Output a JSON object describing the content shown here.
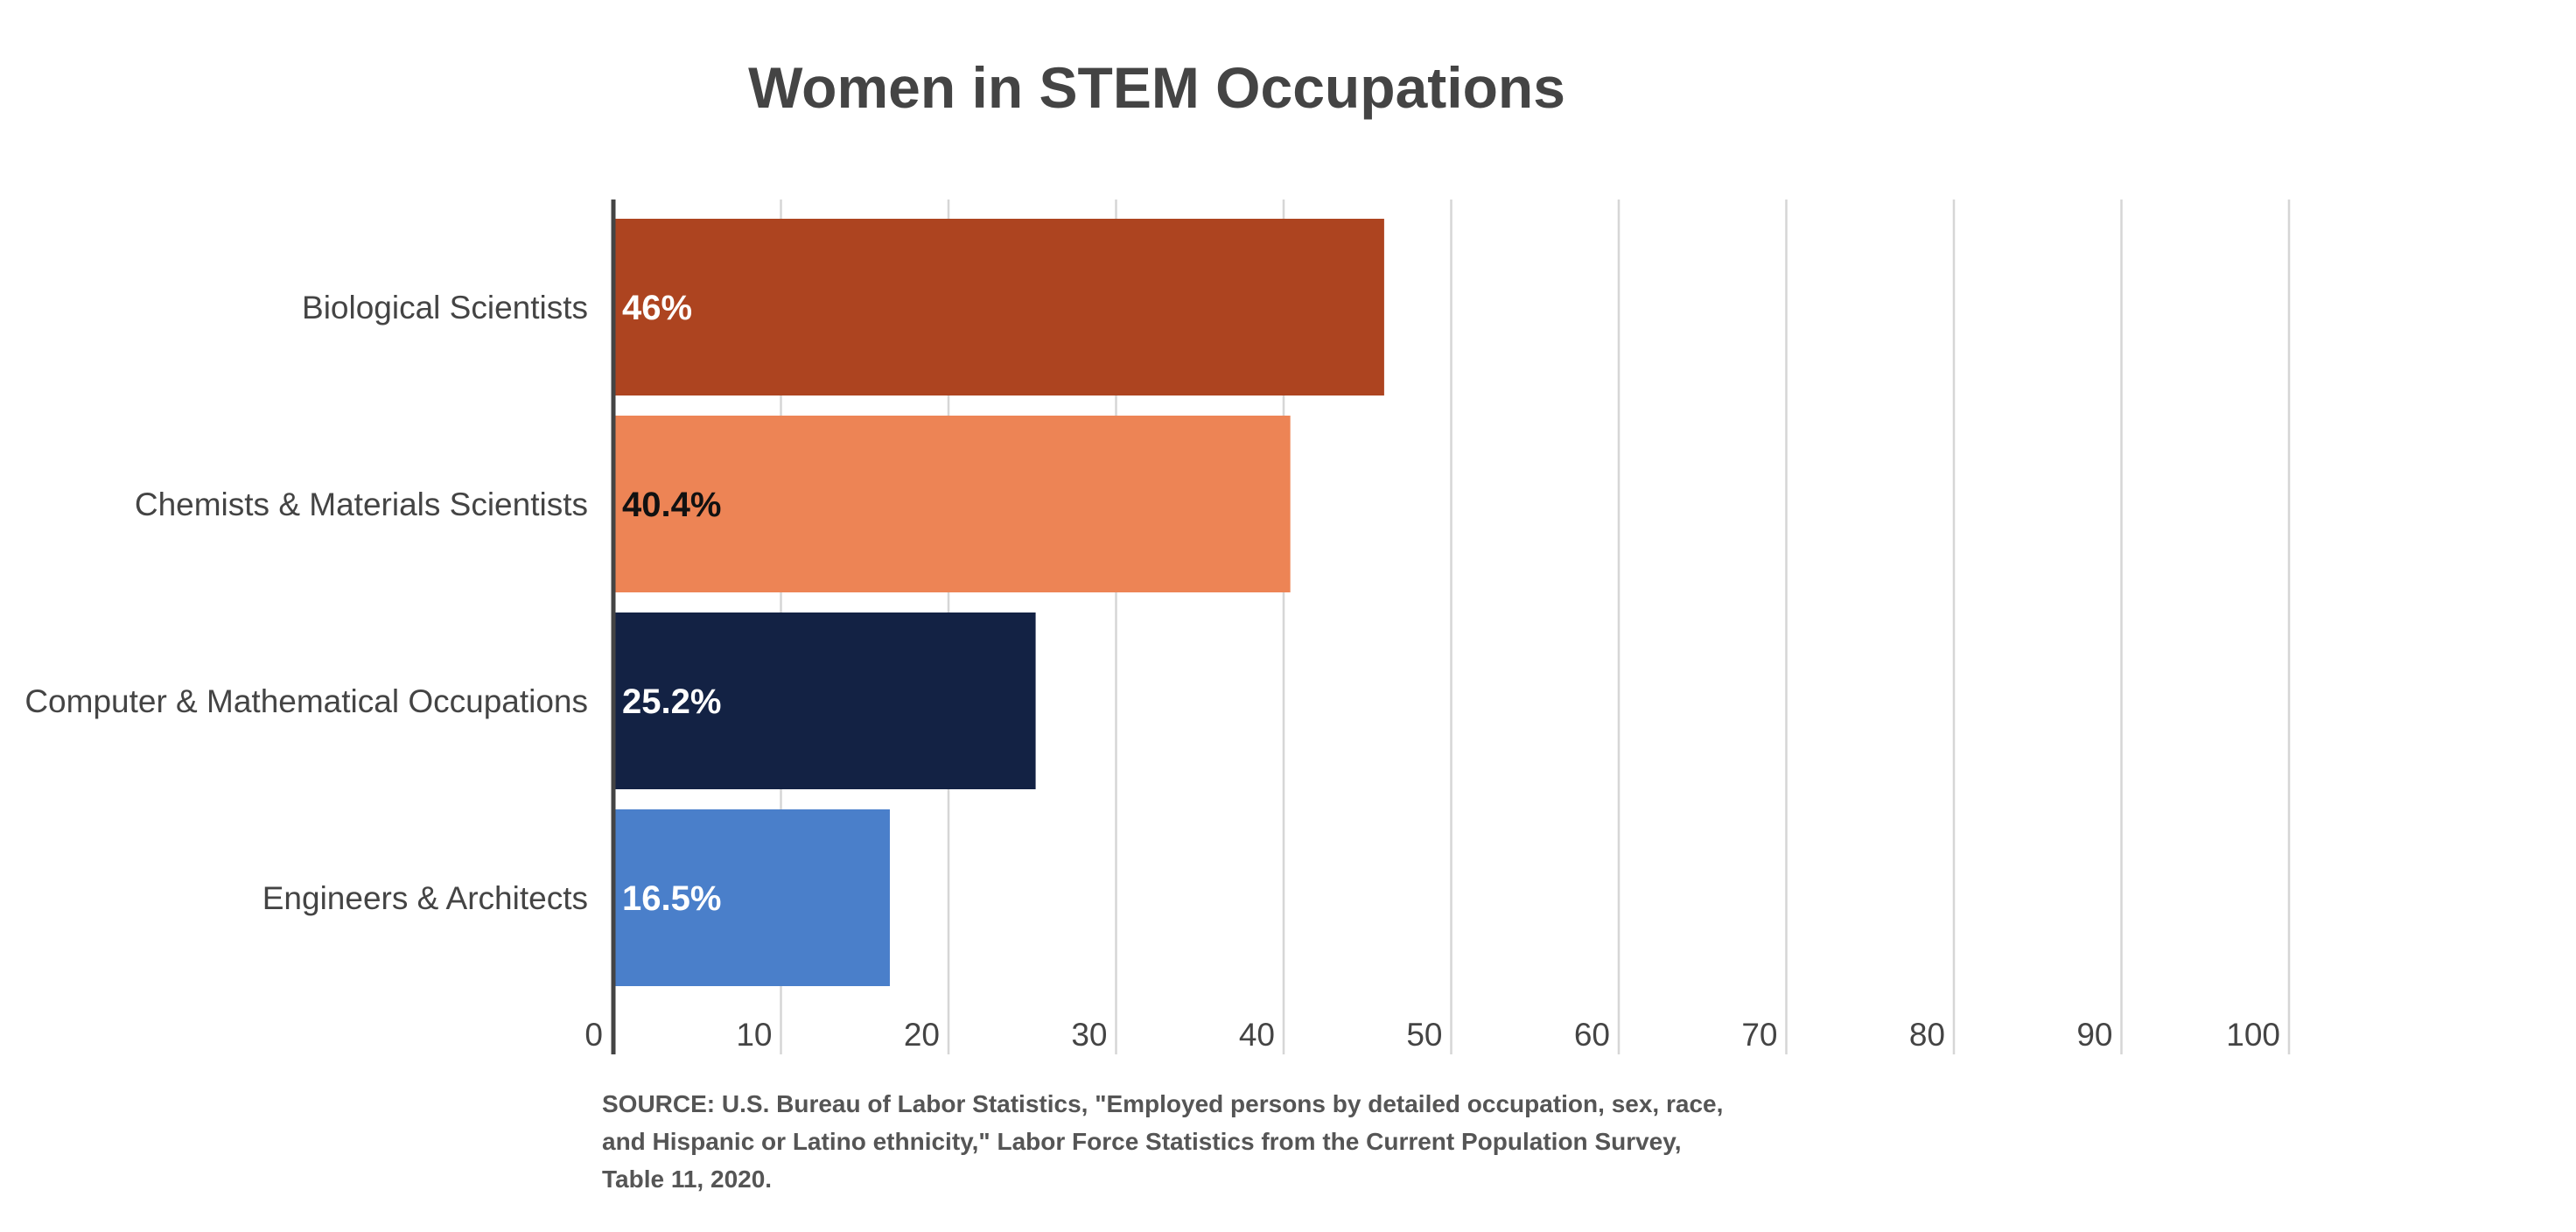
{
  "chart_data": {
    "type": "bar",
    "orientation": "horizontal",
    "title": "Women in STEM Occupations",
    "categories": [
      "Biological Scientists",
      "Chemists & Materials Scientists",
      "Computer & Mathematical Occupations",
      "Engineers & Architects"
    ],
    "values": [
      46,
      40.4,
      25.2,
      16.5
    ],
    "data_labels": [
      "46%",
      "40.4%",
      "25.2%",
      "16.5%"
    ],
    "bar_colors": [
      "#ad4420",
      "#ed8455",
      "#132244",
      "#4a7fca"
    ],
    "label_colors": [
      "#ffffff",
      "#111111",
      "#ffffff",
      "#ffffff"
    ],
    "xlim": [
      0,
      100
    ],
    "xticks": [
      0,
      10,
      20,
      30,
      40,
      50,
      60,
      70,
      80,
      90,
      100
    ],
    "tick_labels": [
      "0",
      "10",
      "20",
      "30",
      "40",
      "50",
      "60",
      "70",
      "80",
      "90",
      "100"
    ],
    "grid": true,
    "legend": "none",
    "xlabel": "",
    "ylabel": ""
  },
  "source": "SOURCE: U.S. Bureau of Labor Statistics, \"Employed persons by detailed occupation, sex, race, and Hispanic or Latino ethnicity,\" Labor Force Statistics from the Current Population Survey, Table 11, 2020.",
  "colors": {
    "axis": "#444444",
    "grid": "#d6d6d6",
    "text": "#444444"
  }
}
